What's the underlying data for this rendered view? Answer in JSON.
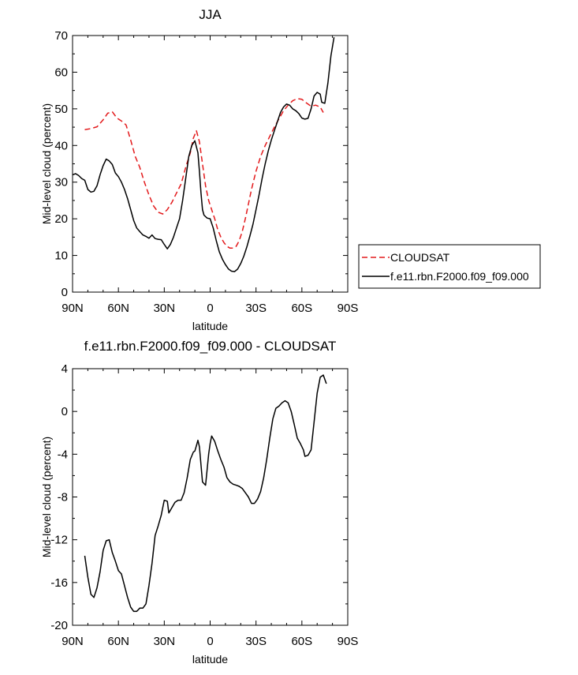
{
  "chart_data": [
    {
      "type": "line",
      "title": "JJA",
      "xlabel": "latitude",
      "ylabel": "Mid-level cloud (percent)",
      "xlim": [
        -90,
        90
      ],
      "ylim": [
        0,
        70
      ],
      "x_ticks": [
        {
          "value": -90,
          "label": "90N"
        },
        {
          "value": -60,
          "label": "60N"
        },
        {
          "value": -30,
          "label": "30N"
        },
        {
          "value": 0,
          "label": "0"
        },
        {
          "value": 30,
          "label": "30S"
        },
        {
          "value": 60,
          "label": "60S"
        },
        {
          "value": 90,
          "label": "90S"
        }
      ],
      "y_ticks": [
        {
          "value": 0,
          "label": "0"
        },
        {
          "value": 10,
          "label": "10"
        },
        {
          "value": 20,
          "label": "20"
        },
        {
          "value": 30,
          "label": "30"
        },
        {
          "value": 40,
          "label": "40"
        },
        {
          "value": 50,
          "label": "50"
        },
        {
          "value": 60,
          "label": "60"
        },
        {
          "value": 70,
          "label": "70"
        }
      ],
      "legend_position": "right",
      "series": [
        {
          "name": "CLOUDSAT",
          "color": "#e31a1c",
          "dash": "dashed",
          "points": [
            [
              -82,
              44.3
            ],
            [
              -78,
              44.6
            ],
            [
              -74,
              45.1
            ],
            [
              -70,
              47
            ],
            [
              -67,
              48.8
            ],
            [
              -64,
              49.2
            ],
            [
              -61,
              47.5
            ],
            [
              -58,
              46.7
            ],
            [
              -55,
              45.6
            ],
            [
              -52,
              41.5
            ],
            [
              -49,
              37
            ],
            [
              -46,
              34
            ],
            [
              -43,
              30
            ],
            [
              -40,
              26.5
            ],
            [
              -37,
              23.5
            ],
            [
              -34,
              21.8
            ],
            [
              -31,
              21.3
            ],
            [
              -28,
              22.5
            ],
            [
              -25,
              24.5
            ],
            [
              -22,
              27
            ],
            [
              -19,
              29.5
            ],
            [
              -16,
              34
            ],
            [
              -13,
              38
            ],
            [
              -11,
              42
            ],
            [
              -9,
              44
            ],
            [
              -7,
              41
            ],
            [
              -5,
              35
            ],
            [
              -3,
              29
            ],
            [
              -1,
              25
            ],
            [
              1,
              22.5
            ],
            [
              3,
              20
            ],
            [
              5,
              17
            ],
            [
              7,
              15
            ],
            [
              9,
              13.5
            ],
            [
              11,
              12.5
            ],
            [
              13,
              12
            ],
            [
              15,
              12
            ],
            [
              17,
              12.5
            ],
            [
              19,
              14
            ],
            [
              21,
              16.5
            ],
            [
              23,
              20
            ],
            [
              25,
              24
            ],
            [
              27,
              28
            ],
            [
              30,
              33
            ],
            [
              33,
              37
            ],
            [
              36,
              40
            ],
            [
              39,
              42.5
            ],
            [
              42,
              45
            ],
            [
              45,
              47.3
            ],
            [
              48,
              49.5
            ],
            [
              51,
              51
            ],
            [
              54,
              52.2
            ],
            [
              57,
              52.8
            ],
            [
              60,
              52.6
            ],
            [
              63,
              51.6
            ],
            [
              66,
              50.7
            ],
            [
              69,
              51
            ],
            [
              72,
              50.5
            ],
            [
              74,
              49
            ]
          ]
        },
        {
          "name": "f.e11.rbn.F2000.f09_f09.000",
          "color": "#000000",
          "dash": "solid",
          "points": [
            [
              -90,
              32
            ],
            [
              -88,
              32.3
            ],
            [
              -86,
              31.8
            ],
            [
              -84,
              31
            ],
            [
              -82,
              30.5
            ],
            [
              -80,
              28
            ],
            [
              -78,
              27.3
            ],
            [
              -76,
              27.5
            ],
            [
              -74,
              29
            ],
            [
              -72,
              32
            ],
            [
              -70,
              34.5
            ],
            [
              -68,
              36.3
            ],
            [
              -66,
              35.8
            ],
            [
              -64,
              34.8
            ],
            [
              -62,
              32.5
            ],
            [
              -60,
              31.5
            ],
            [
              -58,
              30
            ],
            [
              -56,
              28
            ],
            [
              -54,
              25.5
            ],
            [
              -52,
              22.5
            ],
            [
              -50,
              19.5
            ],
            [
              -48,
              17.5
            ],
            [
              -46,
              16.5
            ],
            [
              -44,
              15.6
            ],
            [
              -42,
              15.2
            ],
            [
              -40,
              14.7
            ],
            [
              -38,
              15.6
            ],
            [
              -36,
              14.6
            ],
            [
              -34,
              14.4
            ],
            [
              -32,
              14.3
            ],
            [
              -30,
              13
            ],
            [
              -28,
              11.8
            ],
            [
              -26,
              13
            ],
            [
              -24,
              15
            ],
            [
              -22,
              17.5
            ],
            [
              -20,
              20
            ],
            [
              -18,
              25
            ],
            [
              -16,
              31
            ],
            [
              -14,
              37
            ],
            [
              -12,
              40
            ],
            [
              -10,
              41.3
            ],
            [
              -8,
              38
            ],
            [
              -7,
              33
            ],
            [
              -6,
              27
            ],
            [
              -5,
              22.5
            ],
            [
              -4,
              21
            ],
            [
              -2,
              20.2
            ],
            [
              0,
              20
            ],
            [
              2,
              17.5
            ],
            [
              4,
              14
            ],
            [
              6,
              11
            ],
            [
              8,
              9
            ],
            [
              10,
              7.5
            ],
            [
              12,
              6.3
            ],
            [
              14,
              5.7
            ],
            [
              16,
              5.6
            ],
            [
              18,
              6.3
            ],
            [
              20,
              7.8
            ],
            [
              22,
              9.8
            ],
            [
              24,
              12.3
            ],
            [
              26,
              15.3
            ],
            [
              28,
              18.5
            ],
            [
              30,
              22.5
            ],
            [
              32,
              26.5
            ],
            [
              34,
              31
            ],
            [
              36,
              35
            ],
            [
              38,
              38.5
            ],
            [
              40,
              41.5
            ],
            [
              42,
              44
            ],
            [
              44,
              46.5
            ],
            [
              46,
              49
            ],
            [
              48,
              50.5
            ],
            [
              50,
              51.3
            ],
            [
              52,
              51
            ],
            [
              54,
              50
            ],
            [
              56,
              49.5
            ],
            [
              58,
              48.7
            ],
            [
              60,
              47.5
            ],
            [
              62,
              47.2
            ],
            [
              64,
              47.4
            ],
            [
              66,
              50
            ],
            [
              68,
              53.5
            ],
            [
              70,
              54.5
            ],
            [
              72,
              54
            ],
            [
              73,
              51.8
            ],
            [
              75,
              51.5
            ],
            [
              77,
              57
            ],
            [
              79,
              64.5
            ],
            [
              81,
              69.5
            ]
          ]
        }
      ]
    },
    {
      "type": "line",
      "title": "f.e11.rbn.F2000.f09_f09.000 - CLOUDSAT",
      "xlabel": "latitude",
      "ylabel": "Mid-level cloud (percent)",
      "xlim": [
        -90,
        90
      ],
      "ylim": [
        -20,
        4
      ],
      "x_ticks": [
        {
          "value": -90,
          "label": "90N"
        },
        {
          "value": -60,
          "label": "60N"
        },
        {
          "value": -30,
          "label": "30N"
        },
        {
          "value": 0,
          "label": "0"
        },
        {
          "value": 30,
          "label": "30S"
        },
        {
          "value": 60,
          "label": "60S"
        },
        {
          "value": 90,
          "label": "90S"
        }
      ],
      "y_ticks": [
        {
          "value": -20,
          "label": "-20"
        },
        {
          "value": -16,
          "label": "-16"
        },
        {
          "value": -12,
          "label": "-12"
        },
        {
          "value": -8,
          "label": "-8"
        },
        {
          "value": -4,
          "label": "-4"
        },
        {
          "value": 0,
          "label": "0"
        },
        {
          "value": 4,
          "label": "4"
        }
      ],
      "series": [
        {
          "color": "#000000",
          "dash": "solid",
          "points": [
            [
              -82,
              -13.5
            ],
            [
              -80,
              -15.5
            ],
            [
              -78,
              -17.1
            ],
            [
              -76,
              -17.4
            ],
            [
              -74,
              -16.5
            ],
            [
              -72,
              -15
            ],
            [
              -70,
              -13
            ],
            [
              -68,
              -12.1
            ],
            [
              -66,
              -12
            ],
            [
              -64,
              -13.2
            ],
            [
              -62,
              -14
            ],
            [
              -60,
              -14.9
            ],
            [
              -58,
              -15.2
            ],
            [
              -56,
              -16.3
            ],
            [
              -54,
              -17.4
            ],
            [
              -52,
              -18.3
            ],
            [
              -50,
              -18.7
            ],
            [
              -48,
              -18.7
            ],
            [
              -46,
              -18.4
            ],
            [
              -44,
              -18.4
            ],
            [
              -42,
              -18
            ],
            [
              -40,
              -16.3
            ],
            [
              -38,
              -14.2
            ],
            [
              -36,
              -11.6
            ],
            [
              -34,
              -10.7
            ],
            [
              -32,
              -9.7
            ],
            [
              -30,
              -8.3
            ],
            [
              -28,
              -8.4
            ],
            [
              -27,
              -9.5
            ],
            [
              -25,
              -9
            ],
            [
              -23,
              -8.5
            ],
            [
              -21,
              -8.3
            ],
            [
              -19,
              -8.3
            ],
            [
              -17,
              -7.6
            ],
            [
              -15,
              -6.2
            ],
            [
              -13,
              -4.5
            ],
            [
              -11,
              -3.8
            ],
            [
              -10,
              -3.7
            ],
            [
              -9,
              -3.2
            ],
            [
              -8,
              -2.7
            ],
            [
              -7,
              -3.3
            ],
            [
              -6,
              -5
            ],
            [
              -5,
              -6.6
            ],
            [
              -3,
              -6.9
            ],
            [
              -2,
              -5.5
            ],
            [
              -1,
              -4
            ],
            [
              0,
              -3
            ],
            [
              1,
              -2.3
            ],
            [
              3,
              -2.8
            ],
            [
              5,
              -3.7
            ],
            [
              7,
              -4.5
            ],
            [
              9,
              -5.2
            ],
            [
              11,
              -6.2
            ],
            [
              13,
              -6.6
            ],
            [
              15,
              -6.8
            ],
            [
              17,
              -6.9
            ],
            [
              19,
              -7
            ],
            [
              21,
              -7.2
            ],
            [
              23,
              -7.6
            ],
            [
              25,
              -8
            ],
            [
              27,
              -8.6
            ],
            [
              29,
              -8.6
            ],
            [
              31,
              -8.2
            ],
            [
              33,
              -7.5
            ],
            [
              35,
              -6.2
            ],
            [
              37,
              -4.5
            ],
            [
              39,
              -2.5
            ],
            [
              41,
              -0.7
            ],
            [
              43,
              0.3
            ],
            [
              45,
              0.5
            ],
            [
              47,
              0.8
            ],
            [
              49,
              1
            ],
            [
              51,
              0.8
            ],
            [
              53,
              0
            ],
            [
              55,
              -1.2
            ],
            [
              57,
              -2.5
            ],
            [
              59,
              -3
            ],
            [
              61,
              -3.6
            ],
            [
              62,
              -4.2
            ],
            [
              64,
              -4.1
            ],
            [
              66,
              -3.6
            ],
            [
              68,
              -1
            ],
            [
              70,
              1.7
            ],
            [
              72,
              3.2
            ],
            [
              74,
              3.4
            ],
            [
              76,
              2.6
            ]
          ]
        }
      ]
    }
  ]
}
